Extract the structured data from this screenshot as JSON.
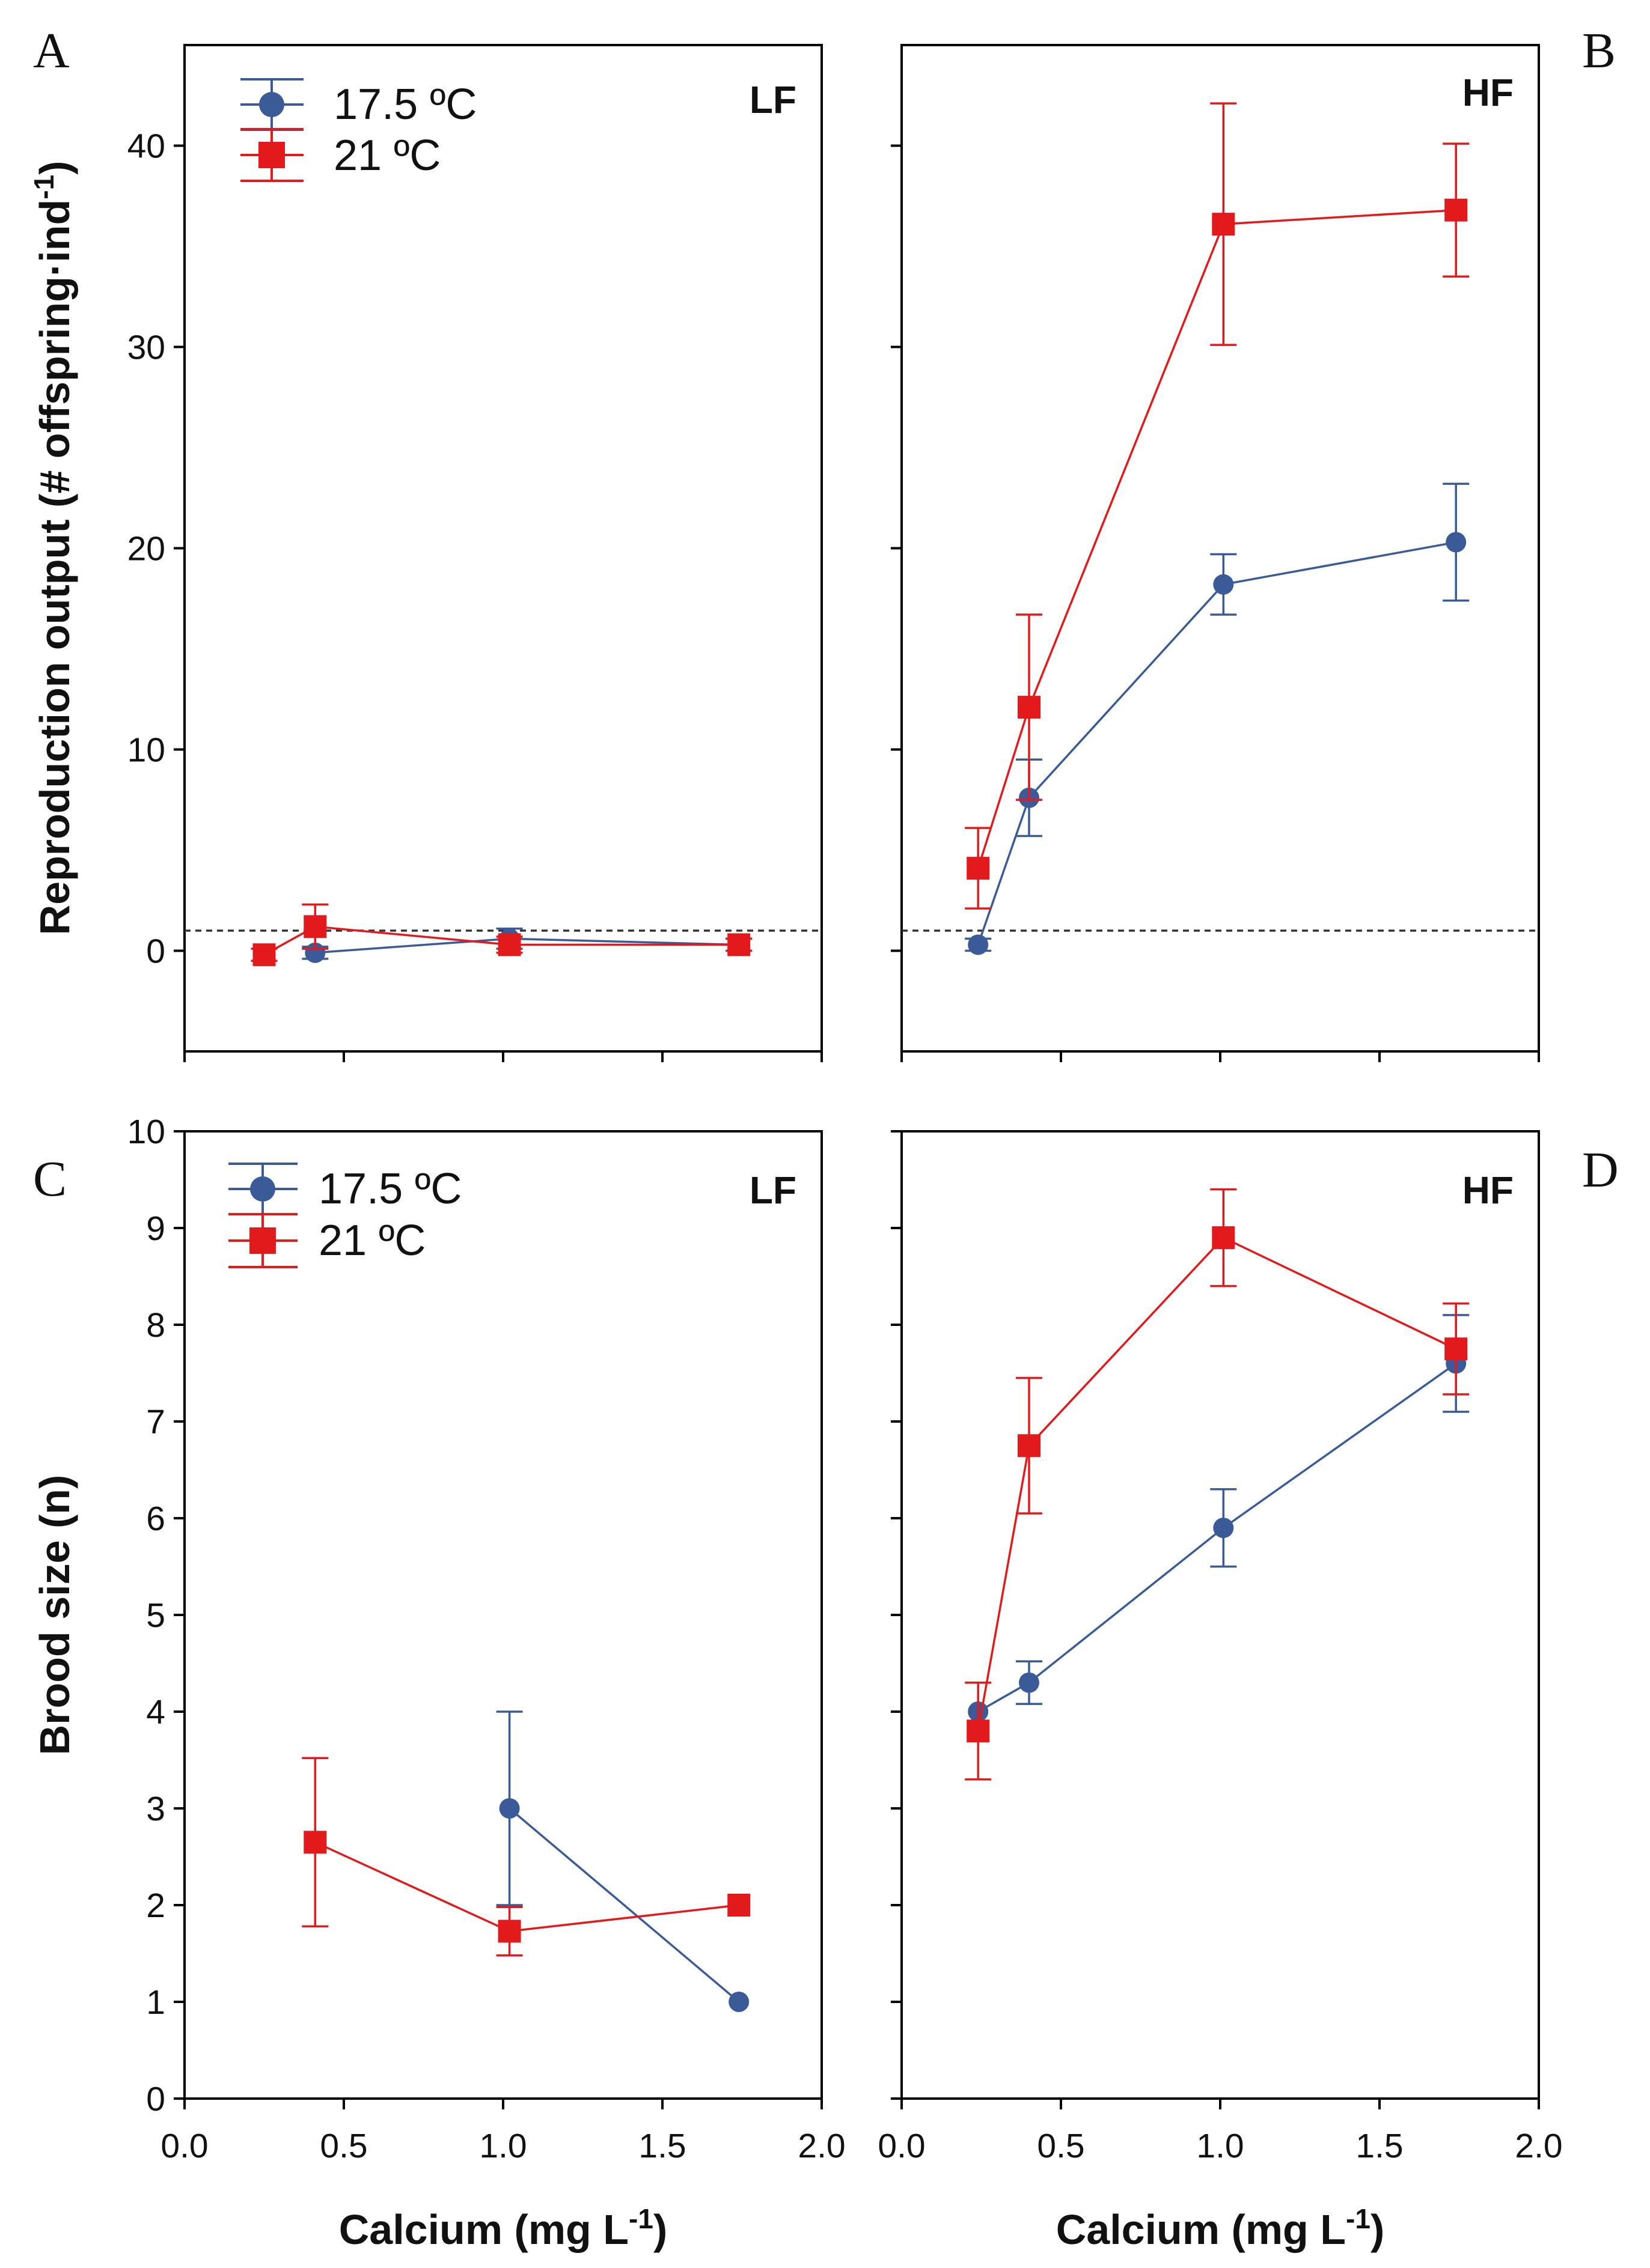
{
  "chart_data": [
    {
      "id": "A",
      "type": "line",
      "panel_letter": "A",
      "tag": "LF",
      "xlim": [
        0,
        2.0
      ],
      "ylim": [
        -5,
        45
      ],
      "yticks": [
        0,
        10,
        20,
        30,
        40
      ],
      "ylabel": "Reproduction output  (# offspring·ind",
      "ylabel_sup": "-1",
      "ylabel_tail": ")",
      "xlabel": "",
      "reference_line": 1,
      "legend": "top-left",
      "series": [
        {
          "name": "17.5 ºC",
          "marker": "circle",
          "color": "#3a5a98",
          "x": [
            0.41,
            1.02,
            1.74
          ],
          "y": [
            -0.1,
            0.6,
            0.3
          ],
          "err": [
            0.3,
            0.5,
            0.3
          ]
        },
        {
          "name": "21 ºC",
          "marker": "square",
          "color": "#e31a1c",
          "x": [
            0.25,
            0.41,
            1.02,
            1.74
          ],
          "y": [
            -0.2,
            1.2,
            0.3,
            0.3
          ],
          "err": [
            0.3,
            1.1,
            0.4,
            0.3
          ]
        }
      ]
    },
    {
      "id": "B",
      "type": "line",
      "panel_letter": "B",
      "tag": "HF",
      "xlim": [
        0,
        2.0
      ],
      "ylim": [
        -5,
        45
      ],
      "yticks": [
        0,
        10,
        20,
        30,
        40
      ],
      "xlabel": "",
      "reference_line": 1,
      "series": [
        {
          "name": "17.5 ºC",
          "marker": "circle",
          "color": "#3a5a98",
          "x": [
            0.24,
            0.4,
            1.01,
            1.74
          ],
          "y": [
            0.3,
            7.6,
            18.2,
            20.3
          ],
          "err": [
            0.3,
            1.9,
            1.5,
            2.9
          ]
        },
        {
          "name": "21 ºC",
          "marker": "square",
          "color": "#e31a1c",
          "x": [
            0.24,
            0.4,
            1.01,
            1.74
          ],
          "y": [
            4.1,
            12.1,
            36.1,
            36.8
          ],
          "err": [
            2.0,
            4.6,
            6.0,
            3.3
          ]
        }
      ]
    },
    {
      "id": "C",
      "type": "line",
      "panel_letter": "C",
      "tag": "LF",
      "xlim": [
        0,
        2.0
      ],
      "ylim": [
        0,
        10
      ],
      "xticks": [
        "0.0",
        "0.5",
        "1.0",
        "1.5",
        "2.0"
      ],
      "yticks": [
        0,
        1,
        2,
        3,
        4,
        5,
        6,
        7,
        8,
        9,
        10
      ],
      "ylabel": "Brood size (n)",
      "xlabel": "Calcium (mg L",
      "xlabel_sup": "-1",
      "xlabel_tail": ")",
      "legend": "top-left",
      "series": [
        {
          "name": "17.5 ºC",
          "marker": "circle",
          "color": "#3a5a98",
          "x": [
            1.02,
            1.74
          ],
          "y": [
            3.0,
            1.0
          ],
          "err": [
            1.0,
            0.0
          ]
        },
        {
          "name": "21 ºC",
          "marker": "square",
          "color": "#e31a1c",
          "x": [
            0.41,
            1.02,
            1.74
          ],
          "y": [
            2.65,
            1.73,
            2.0
          ],
          "err": [
            0.87,
            0.25,
            0.0
          ]
        }
      ]
    },
    {
      "id": "D",
      "type": "line",
      "panel_letter": "D",
      "tag": "HF",
      "xlim": [
        0,
        2.0
      ],
      "ylim": [
        0,
        10
      ],
      "xticks": [
        "0.0",
        "0.5",
        "1.0",
        "1.5",
        "2.0"
      ],
      "yticks": [
        0,
        1,
        2,
        3,
        4,
        5,
        6,
        7,
        8,
        9,
        10
      ],
      "xlabel": "Calcium (mg L",
      "xlabel_sup": "-1",
      "xlabel_tail": ")",
      "series": [
        {
          "name": "17.5 ºC",
          "marker": "circle",
          "color": "#3a5a98",
          "x": [
            0.24,
            0.4,
            1.01,
            1.74
          ],
          "y": [
            4.0,
            4.3,
            5.9,
            7.6
          ],
          "err": [
            0.0,
            0.22,
            0.4,
            0.5
          ]
        },
        {
          "name": "21 ºC",
          "marker": "square",
          "color": "#e31a1c",
          "x": [
            0.24,
            0.4,
            1.01,
            1.74
          ],
          "y": [
            3.8,
            6.75,
            8.9,
            7.75
          ],
          "err": [
            0.5,
            0.7,
            0.5,
            0.47
          ]
        }
      ]
    }
  ]
}
